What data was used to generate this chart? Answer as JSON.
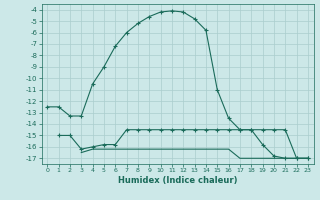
{
  "xlabel": "Humidex (Indice chaleur)",
  "background_color": "#cce8e8",
  "grid_color": "#aacece",
  "line_color": "#1a6b5a",
  "x_main": [
    0,
    1,
    2,
    3,
    4,
    5,
    6,
    7,
    8,
    9,
    10,
    11,
    12,
    13,
    14,
    15,
    16,
    17,
    18,
    19,
    20,
    21,
    22,
    23
  ],
  "y_main": [
    -12.5,
    -12.5,
    -13.3,
    -13.3,
    -10.5,
    -9.0,
    -7.2,
    -6.0,
    -5.2,
    -4.6,
    -4.2,
    -4.1,
    -4.2,
    -4.8,
    -5.8,
    -11.0,
    -13.5,
    -14.5,
    -14.5,
    -15.8,
    -16.8,
    -17.0,
    -17.0,
    -17.0
  ],
  "x_flat1": [
    1,
    2,
    3,
    4,
    5,
    6,
    7,
    8,
    9,
    10,
    11,
    12,
    13,
    14,
    15,
    16,
    17,
    18,
    19,
    20,
    21,
    22,
    23
  ],
  "y_flat1": [
    -15.0,
    -15.0,
    -16.2,
    -16.0,
    -15.8,
    -15.8,
    -14.5,
    -14.5,
    -14.5,
    -14.5,
    -14.5,
    -14.5,
    -14.5,
    -14.5,
    -14.5,
    -14.5,
    -14.5,
    -14.5,
    -14.5,
    -14.5,
    -14.5,
    -17.0,
    -17.0
  ],
  "x_flat2": [
    3,
    4,
    5,
    6,
    7,
    8,
    9,
    10,
    11,
    12,
    13,
    14,
    15,
    16,
    17,
    18,
    19,
    20,
    21,
    22,
    23
  ],
  "y_flat2": [
    -16.5,
    -16.2,
    -16.2,
    -16.2,
    -16.2,
    -16.2,
    -16.2,
    -16.2,
    -16.2,
    -16.2,
    -16.2,
    -16.2,
    -16.2,
    -16.2,
    -17.0,
    -17.0,
    -17.0,
    -17.0,
    -17.0,
    -17.0,
    -17.0
  ],
  "ylim": [
    -17.5,
    -3.5
  ],
  "xlim": [
    -0.5,
    23.5
  ],
  "yticks": [
    -4,
    -5,
    -6,
    -7,
    -8,
    -9,
    -10,
    -11,
    -12,
    -13,
    -14,
    -15,
    -16,
    -17
  ],
  "xticks": [
    0,
    1,
    2,
    3,
    4,
    5,
    6,
    7,
    8,
    9,
    10,
    11,
    12,
    13,
    14,
    15,
    16,
    17,
    18,
    19,
    20,
    21,
    22,
    23
  ],
  "xlabel_fontsize": 6,
  "tick_fontsize": 5
}
